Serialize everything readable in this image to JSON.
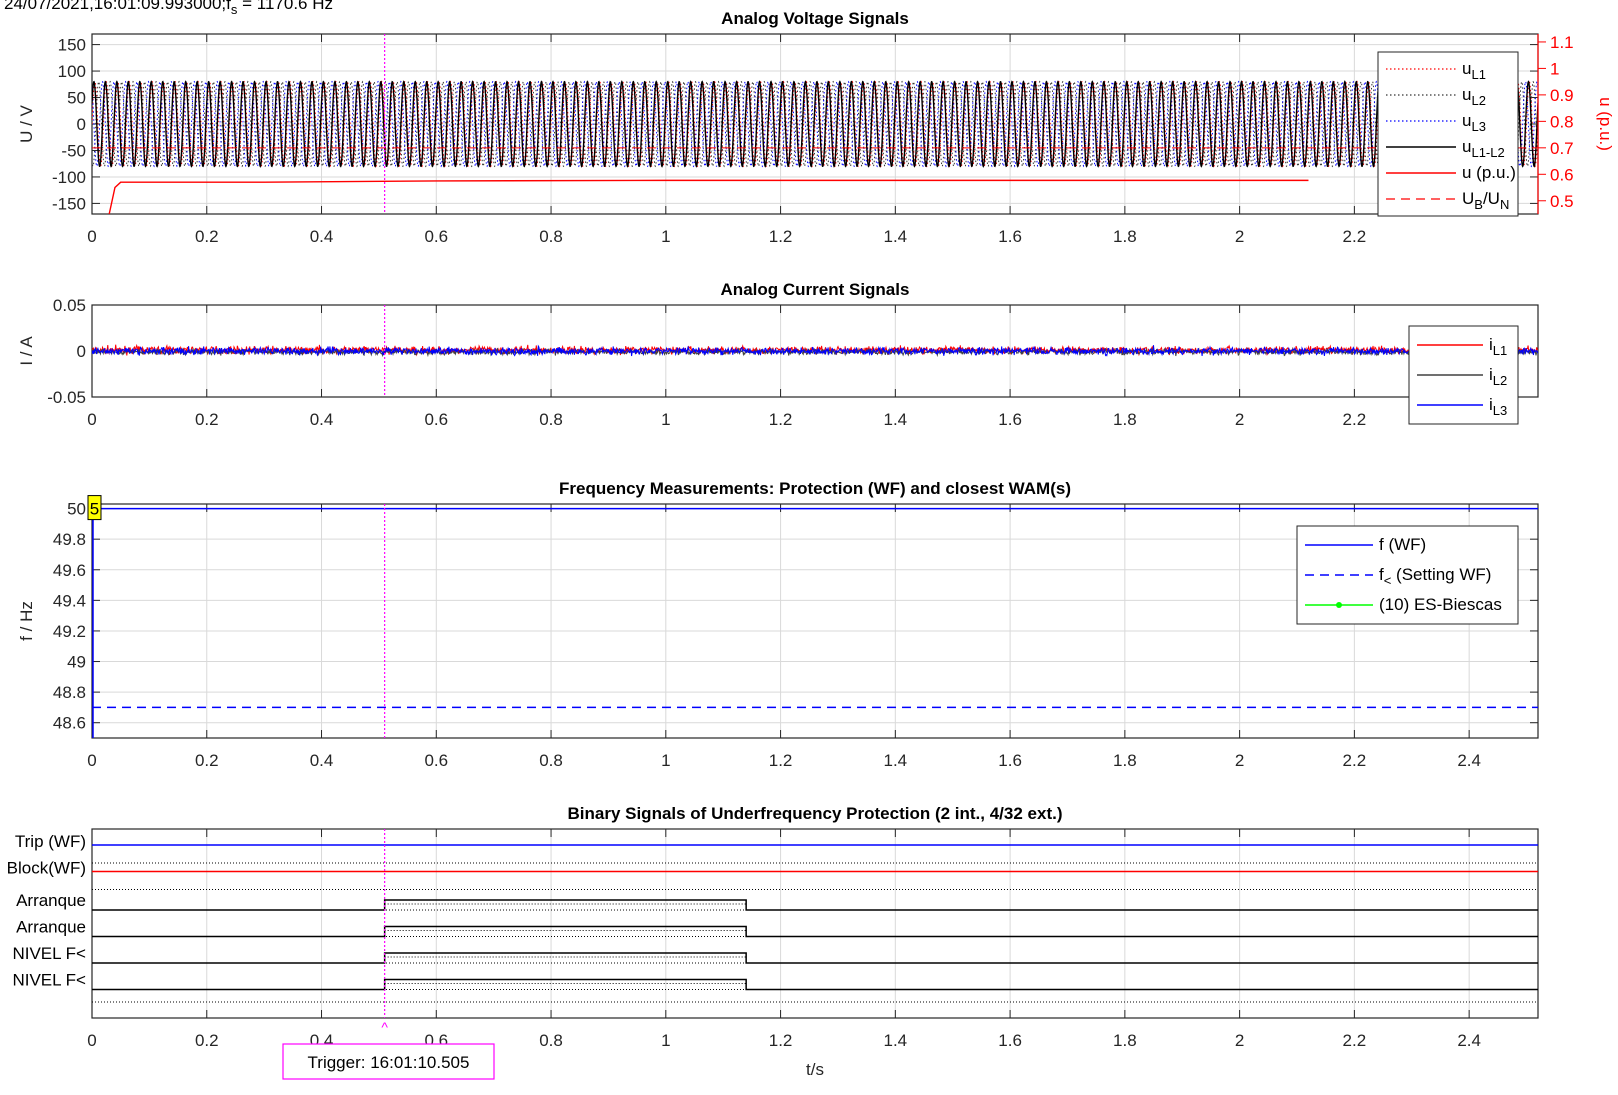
{
  "header": "24/07/2021,16:01:09.993000;f_s = 1170.6 Hz",
  "xlabel": "t/s",
  "trigger": {
    "label": "Trigger: 16:01:10.505",
    "t": 0.51,
    "color": "#ff00ff"
  },
  "colors": {
    "red": "#ff0000",
    "blue": "#0000ff",
    "black": "#000000",
    "grey": "#404040",
    "green": "#00ff00",
    "grid": "#d9d9d9",
    "yellow": "#ffff00"
  },
  "chart_data": [
    {
      "type": "line",
      "id": "voltage",
      "title": "Analog Voltage Signals",
      "ylabel": "U / V",
      "y2label": "u (p.u.)",
      "xlim": [
        0,
        2.52
      ],
      "ylim": [
        -170,
        170
      ],
      "y2lim": [
        0.45,
        1.13
      ],
      "xticks": [
        0,
        0.2,
        0.4,
        0.6,
        0.8,
        1,
        1.2,
        1.4,
        1.6,
        1.8,
        2,
        2.2
      ],
      "yticks": [
        -150,
        -100,
        -50,
        0,
        50,
        100,
        150
      ],
      "y2ticks": [
        0.5,
        0.6,
        0.7,
        0.8,
        0.9,
        1,
        1.1
      ],
      "signal_frequency_hz": 50,
      "series": [
        {
          "name": "u_L1",
          "amplitude": 80,
          "phase_deg": 0,
          "style": "dotted",
          "color": "#ff0000"
        },
        {
          "name": "u_L2",
          "amplitude": 80,
          "phase_deg": -120,
          "style": "dotted",
          "color": "#333333"
        },
        {
          "name": "u_L3",
          "amplitude": 80,
          "phase_deg": 120,
          "style": "dotted",
          "color": "#0000ff"
        },
        {
          "name": "u_L1-L2",
          "amplitude": 80,
          "phase_deg": 30,
          "style": "solid",
          "color": "#000000"
        },
        {
          "name": "u (p.u.)",
          "axis": "right",
          "x": [
            0.03,
            0.04,
            0.05,
            0.3,
            0.6,
            1.0,
            1.5,
            2.12
          ],
          "values": [
            0.45,
            0.55,
            0.57,
            0.57,
            0.575,
            0.577,
            0.577,
            0.577
          ],
          "style": "solid",
          "color": "#ff0000"
        },
        {
          "name": "U_B/U_N",
          "axis": "right",
          "constant": 0.7,
          "style": "dashed",
          "color": "#ff0000"
        }
      ],
      "legend": {
        "position": "right",
        "entries": [
          "u_L1",
          "u_L2",
          "u_L3",
          "u_L1-L2",
          "u (p.u.)",
          "U_B/U_N"
        ]
      }
    },
    {
      "type": "line",
      "id": "current",
      "title": "Analog Current Signals",
      "ylabel": "I / A",
      "xlim": [
        0,
        2.52
      ],
      "ylim": [
        -0.05,
        0.05
      ],
      "xticks": [
        0,
        0.2,
        0.4,
        0.6,
        0.8,
        1,
        1.2,
        1.4,
        1.6,
        1.8,
        2,
        2.2
      ],
      "yticks": [
        -0.05,
        0,
        0.05
      ],
      "series": [
        {
          "name": "i_L1",
          "mean": 0.001,
          "noise": 0.004,
          "color": "#ff0000"
        },
        {
          "name": "i_L2",
          "mean": -0.001,
          "noise": 0.003,
          "color": "#404040"
        },
        {
          "name": "i_L3",
          "mean": 0.0,
          "noise": 0.004,
          "color": "#0000ff"
        }
      ],
      "legend": {
        "position": "right",
        "entries": [
          "i_L1",
          "i_L2",
          "i_L3"
        ]
      }
    },
    {
      "type": "line",
      "id": "frequency",
      "title": "Frequency Measurements: Protection (WF) and closest WAM(s)",
      "ylabel": "f / Hz",
      "xlim": [
        0,
        2.52
      ],
      "ylim": [
        48.5,
        50.03
      ],
      "xticks": [
        0,
        0.2,
        0.4,
        0.6,
        0.8,
        1,
        1.2,
        1.4,
        1.6,
        1.8,
        2,
        2.2,
        2.4
      ],
      "yticks": [
        48.6,
        48.8,
        49,
        49.2,
        49.4,
        49.6,
        49.8,
        50
      ],
      "ytick_labels": [
        "48.6",
        "48.8",
        "49",
        "49.2",
        "49.4",
        "49.6",
        "49.8",
        "50"
      ],
      "series": [
        {
          "name": "f (WF)",
          "x": [
            0,
            0,
            2.52
          ],
          "values": [
            48.5,
            50.0,
            50.0
          ],
          "style": "solid",
          "color": "#0000ff"
        },
        {
          "name": "f_< (Setting WF)",
          "constant": 48.7,
          "style": "dashed",
          "color": "#0000ff"
        },
        {
          "name": "(10) ES-Biescas",
          "x": [],
          "values": [],
          "style": "solid-marker",
          "color": "#00ff00"
        }
      ],
      "annotation": {
        "text": "5",
        "x": 0.0,
        "y": 50.0
      },
      "legend": {
        "position": "top-right",
        "entries": [
          "f (WF)",
          "f_< (Setting WF)",
          "(10) ES-Biescas"
        ]
      }
    },
    {
      "type": "line",
      "id": "binary",
      "title": "Binary Signals of Underfrequency Protection (2 int., 4/32 ext.)",
      "xlim": [
        0,
        2.52
      ],
      "xticks": [
        0,
        0.2,
        0.4,
        0.6,
        0.8,
        1,
        1.2,
        1.4,
        1.6,
        1.8,
        2,
        2.2,
        2.4
      ],
      "channels": [
        {
          "label": "Trip (WF)",
          "color": "#0000ff",
          "type": "constant"
        },
        {
          "label": "Block(WF)",
          "color": "#ff0000",
          "type": "constant"
        },
        {
          "label": "Arranque",
          "color": "#000000",
          "type": "pulse",
          "on": 0.51,
          "off": 1.14
        },
        {
          "label": "Arranque",
          "color": "#000000",
          "type": "pulse",
          "on": 0.51,
          "off": 1.14
        },
        {
          "label": "NIVEL F<",
          "color": "#000000",
          "type": "pulse",
          "on": 0.51,
          "off": 1.14
        },
        {
          "label": "NIVEL F<",
          "color": "#000000",
          "type": "pulse",
          "on": 0.51,
          "off": 1.14
        }
      ]
    }
  ]
}
